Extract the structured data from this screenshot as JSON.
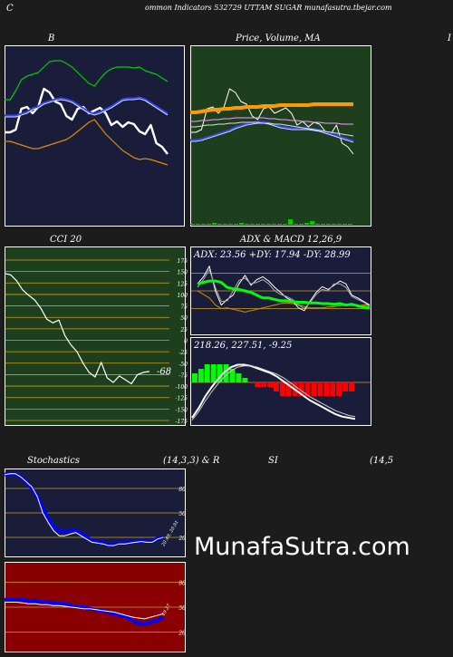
{
  "header": {
    "left_char": "C",
    "title": "ommon  Indicators 532729 UTTAM SUGAR munafasutra.tbejar.com"
  },
  "watermark": "MunafaSutra.com",
  "chart_data": [
    {
      "id": "bollinger",
      "type": "line",
      "title": "B",
      "x": [
        0,
        1,
        2,
        3,
        4,
        5,
        6,
        7,
        8,
        9,
        10,
        11,
        12,
        13,
        14,
        15,
        16,
        17,
        18,
        19,
        20,
        21,
        22,
        23,
        24,
        25,
        26,
        27,
        28,
        29
      ],
      "series": [
        {
          "color": "#ffffff",
          "values": [
            146,
            146,
            143,
            120,
            118,
            125,
            118,
            98,
            102,
            112,
            115,
            128,
            132,
            120,
            118,
            125,
            122,
            119,
            125,
            138,
            134,
            140,
            135,
            137,
            145,
            148,
            138,
            158,
            162,
            170
          ]
        },
        {
          "color": "#00cc00",
          "values": [
            110,
            110,
            100,
            88,
            84,
            82,
            80,
            74,
            68,
            67,
            67,
            70,
            74,
            80,
            86,
            92,
            95,
            87,
            80,
            76,
            74,
            74,
            74,
            75,
            74,
            78,
            80,
            82,
            86,
            90
          ]
        },
        {
          "color": "#3344ff",
          "values": [
            128,
            128,
            128,
            126,
            124,
            120,
            118,
            114,
            112,
            110,
            109,
            110,
            112,
            116,
            120,
            124,
            126,
            124,
            121,
            118,
            114,
            110,
            109,
            109,
            108,
            110,
            114,
            118,
            122,
            126
          ]
        },
        {
          "color": "#e08a00",
          "values": [
            156,
            156,
            158,
            160,
            162,
            164,
            164,
            162,
            160,
            158,
            156,
            154,
            150,
            145,
            140,
            135,
            132,
            140,
            148,
            154,
            160,
            166,
            170,
            174,
            176,
            175,
            176,
            178,
            180,
            182
          ]
        }
      ]
    },
    {
      "id": "price_ma",
      "type": "line",
      "title": "Price,  Volume,  MA",
      "x": [
        0,
        1,
        2,
        3,
        4,
        5,
        6,
        7,
        8,
        9,
        10,
        11,
        12,
        13,
        14,
        15,
        16,
        17,
        18,
        19,
        20,
        21,
        22,
        23,
        24,
        25,
        26,
        27,
        28,
        29
      ],
      "series": [
        {
          "color": "#ffffff",
          "values": [
            146,
            146,
            143,
            120,
            118,
            125,
            118,
            98,
            102,
            112,
            115,
            128,
            132,
            120,
            118,
            125,
            122,
            119,
            125,
            138,
            134,
            140,
            135,
            137,
            145,
            148,
            138,
            158,
            162,
            170
          ]
        },
        {
          "color": "#ff9900",
          "values": [
            124,
            124,
            123,
            122,
            121,
            121,
            120,
            120,
            119,
            119,
            118,
            118,
            118,
            117,
            117,
            117,
            116,
            116,
            116,
            116,
            116,
            116,
            115,
            115,
            115,
            115,
            115,
            115,
            115,
            115
          ]
        },
        {
          "color": "#ff99ff",
          "values": [
            134,
            134,
            133,
            133,
            132,
            132,
            131,
            131,
            130,
            130,
            130,
            130,
            130,
            130,
            131,
            131,
            132,
            132,
            133,
            133,
            134,
            134,
            135,
            135,
            136,
            136,
            136,
            137,
            137,
            137
          ]
        },
        {
          "color": "#3344ff",
          "values": [
            155,
            155,
            154,
            152,
            150,
            148,
            146,
            144,
            141,
            139,
            137,
            136,
            135,
            135,
            136,
            138,
            140,
            141,
            142,
            142,
            142,
            142,
            143,
            144,
            146,
            148,
            150,
            152,
            154,
            156
          ]
        },
        {
          "color": "#dddddd",
          "values": [
            140,
            140,
            139,
            138,
            138,
            137,
            137,
            136,
            136,
            135,
            135,
            135,
            135,
            136,
            136,
            137,
            137,
            138,
            139,
            140,
            141,
            142,
            143,
            144,
            145,
            146,
            147,
            148,
            149,
            150
          ]
        }
      ],
      "volume_bars": [
        1,
        1,
        1,
        1,
        2,
        1,
        1,
        1,
        1,
        2,
        1,
        1,
        1,
        1,
        1,
        1,
        1,
        1,
        6,
        1,
        1,
        2,
        4,
        1,
        1,
        1,
        1,
        1,
        1,
        1
      ]
    },
    {
      "id": "cci",
      "type": "line",
      "title": "CCI 20",
      "value_label": "-68",
      "ylim": [
        -175,
        175
      ],
      "yticks": [
        175,
        150,
        125,
        100,
        75,
        50,
        25,
        0,
        -25,
        -50,
        -75,
        -100,
        -125,
        -150,
        -175
      ],
      "tick_labels": [
        "175",
        "150",
        "125",
        "100",
        "75",
        "50",
        "25",
        "0",
        "-25",
        "-50",
        "-75",
        "-100",
        "-125",
        "-150",
        "-175"
      ],
      "values": [
        146,
        143,
        130,
        110,
        98,
        88,
        70,
        46,
        38,
        44,
        10,
        -10,
        -25,
        -50,
        -70,
        -80,
        -48,
        -82,
        -92,
        -78,
        -86,
        -95,
        -75,
        -70,
        -68
      ]
    },
    {
      "id": "adx",
      "type": "line",
      "title": "ADX  & MACD 12,26,9",
      "label": "ADX: 23.56   +DY: 17.94   -DY: 28.99",
      "ylim": [
        0,
        100
      ],
      "series": [
        {
          "name": "ADX",
          "color": "#00ff00",
          "values": [
            60,
            62,
            64,
            64,
            62,
            55,
            53,
            52,
            50,
            48,
            44,
            40,
            40,
            38,
            36,
            36,
            35,
            34,
            34,
            33,
            33,
            32,
            32,
            31,
            32,
            30,
            31,
            29,
            27,
            26
          ]
        },
        {
          "color": "#ffffff",
          "values": [
            60,
            70,
            85,
            50,
            30,
            38,
            44,
            60,
            72,
            58,
            66,
            70,
            64,
            55,
            48,
            40,
            36,
            26,
            22,
            36,
            48,
            56,
            52,
            58,
            64,
            60,
            44,
            40,
            35,
            30
          ]
        },
        {
          "color": "#aaaaaa",
          "values": [
            55,
            66,
            80,
            55,
            35,
            36,
            50,
            65,
            68,
            60,
            62,
            66,
            60,
            50,
            45,
            42,
            38,
            30,
            25,
            34,
            45,
            52,
            50,
            60,
            60,
            55,
            42,
            38,
            34,
            28
          ]
        },
        {
          "color": "#e08a00",
          "values": [
            50,
            45,
            40,
            30,
            25,
            26,
            24,
            22,
            20,
            22,
            24,
            26,
            28,
            30,
            32,
            33,
            32,
            30,
            28,
            26,
            26,
            26,
            27,
            28,
            29,
            30,
            30,
            29,
            30,
            30
          ]
        }
      ]
    },
    {
      "id": "macd",
      "type": "line",
      "label": "218.26,  227.51,  -9.25",
      "series": [
        {
          "color": "#ffffff",
          "values": [
            -30,
            -22,
            -12,
            -4,
            3,
            9,
            13,
            15,
            15,
            14,
            12,
            10,
            8,
            5,
            1,
            -3,
            -7,
            -11,
            -15,
            -18,
            -21,
            -24,
            -27,
            -29,
            -30,
            -31
          ]
        },
        {
          "color": "#cccccc",
          "values": [
            -32,
            -25,
            -16,
            -8,
            -1,
            5,
            10,
            13,
            14,
            14,
            13,
            11,
            9,
            7,
            4,
            0,
            -4,
            -8,
            -12,
            -15,
            -18,
            -21,
            -24,
            -26,
            -28,
            -29
          ]
        }
      ],
      "histogram": [
        2,
        3,
        4,
        4,
        4,
        4,
        3,
        2,
        1,
        0,
        -1,
        -1,
        -1,
        -2,
        -3,
        -3,
        -3,
        -3,
        -3,
        -3,
        -3,
        -3,
        -3,
        -3,
        -2,
        -2
      ]
    },
    {
      "id": "stochastics",
      "type": "line",
      "title": "Stochastics",
      "params": "(14,3,3) & R",
      "label": "20.49, 20.91",
      "ylim": [
        0,
        100
      ],
      "tick_labels": [
        "80",
        "50",
        "20"
      ],
      "series": [
        {
          "color": "#0000ff",
          "values": [
            97,
            98,
            98,
            94,
            88,
            80,
            70,
            56,
            43,
            33,
            28,
            27,
            28,
            28,
            25,
            20,
            16,
            14,
            14,
            11,
            12,
            13,
            14,
            14,
            15,
            16,
            15,
            15,
            19,
            20
          ]
        },
        {
          "color": "#ffffff",
          "values": [
            97,
            98,
            98,
            94,
            88,
            82,
            70,
            50,
            38,
            28,
            22,
            22,
            24,
            26,
            22,
            18,
            14,
            13,
            12,
            10,
            10,
            12,
            12,
            13,
            14,
            15,
            14,
            14,
            18,
            20
          ]
        }
      ]
    },
    {
      "id": "rsi",
      "type": "line",
      "title": "SI",
      "params": "(14,5",
      "label": "49.27",
      "ylim": [
        0,
        100
      ],
      "tick_labels": [
        "80",
        "50",
        "20"
      ],
      "series": [
        {
          "color": "#0000ff",
          "values": [
            59,
            59,
            58,
            59,
            57,
            58,
            56,
            56,
            55,
            54,
            54,
            52,
            50,
            50,
            48,
            47,
            46,
            44,
            42,
            40,
            38,
            34,
            30,
            30,
            32,
            34,
            38
          ]
        },
        {
          "color": "#ffffff",
          "values": [
            56,
            56,
            56,
            55,
            54,
            54,
            53,
            53,
            52,
            52,
            51,
            50,
            49,
            48,
            48,
            47,
            46,
            45,
            44,
            42,
            40,
            38,
            37,
            36,
            38,
            40,
            42
          ]
        }
      ]
    }
  ]
}
